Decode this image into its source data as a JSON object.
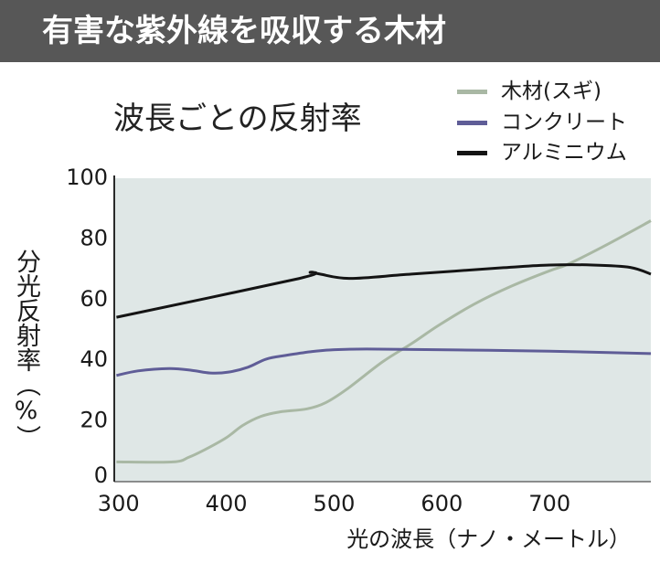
{
  "header": {
    "title": "有害な紫外線を吸収する木材"
  },
  "colors": {
    "header_bg": "#575757",
    "header_text": "#ffffff",
    "plot_bg": "#dfe7e6",
    "axis": "#2a2a2a",
    "text": "#1a1a1a"
  },
  "chart_data": {
    "type": "line",
    "title": "波長ごとの反射率",
    "xlabel": "光の波長（ナノ・メートル）",
    "ylabel": "分光反射率（%）",
    "xlim": [
      296,
      794
    ],
    "ylim": [
      0,
      100
    ],
    "xticks": [
      300,
      400,
      500,
      600,
      700
    ],
    "yticks": [
      0,
      20,
      40,
      60,
      80,
      100
    ],
    "grid": false,
    "legend": "top-right",
    "series": [
      {
        "name": "木材(スギ)",
        "color": "#a9b8a4",
        "x": [
          298,
          350,
          365,
          380,
          400,
          415,
          432,
          450,
          475,
          492,
          512,
          545,
          572,
          597,
          630,
          665,
          700,
          716,
          750,
          794
        ],
        "y": [
          6.5,
          6.5,
          8,
          10.5,
          14.5,
          18.5,
          21.5,
          23,
          24,
          26,
          30.5,
          39.5,
          45.5,
          51.5,
          58.5,
          64.5,
          69.5,
          71.5,
          77.5,
          86
        ]
      },
      {
        "name": "コンクリート",
        "color": "#5f5d97",
        "x": [
          298,
          318,
          347,
          368,
          385,
          402,
          420,
          437,
          455,
          478,
          497,
          530,
          615,
          700,
          794
        ],
        "y": [
          35,
          36.5,
          37.3,
          36.7,
          35.8,
          36.1,
          37.7,
          40.4,
          41.6,
          42.8,
          43.4,
          43.7,
          43.4,
          43,
          42.2
        ]
      },
      {
        "name": "アルミニウム",
        "color": "#141414",
        "x": [
          298,
          468,
          478,
          487,
          515,
          572,
          657,
          700,
          740,
          775,
          794
        ],
        "y": [
          54.2,
          67,
          69,
          68.4,
          67,
          68.4,
          70.5,
          71.4,
          71.4,
          70.6,
          68.4
        ]
      }
    ]
  }
}
